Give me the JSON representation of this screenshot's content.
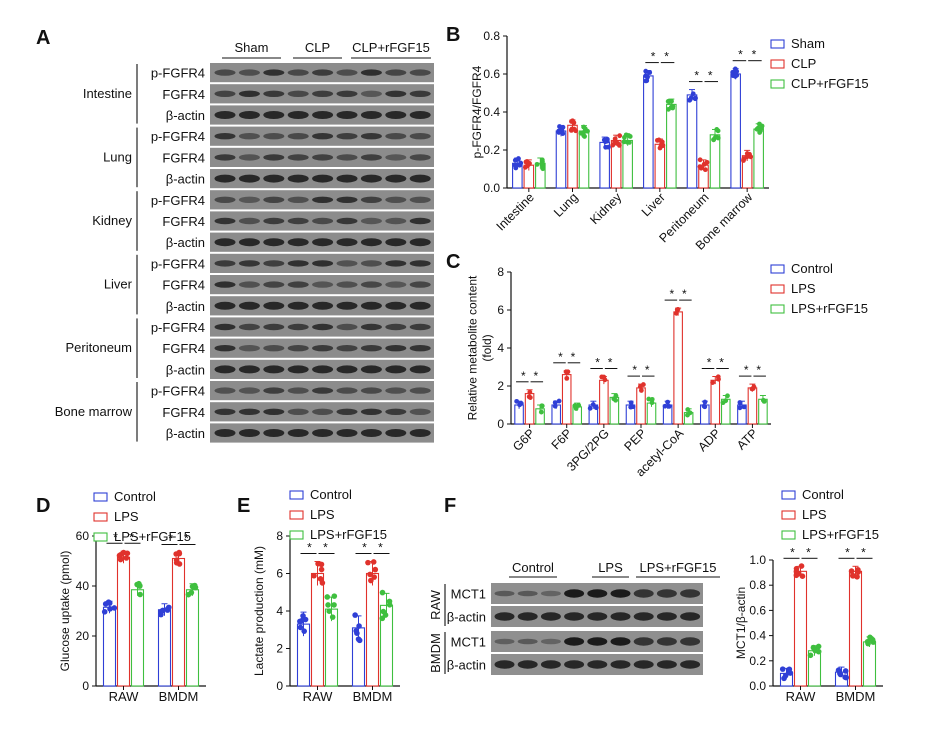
{
  "colors": {
    "sham": "#2f3fd6",
    "clp": "#e0322c",
    "rfgf": "#3fbf3f",
    "axis": "#111111"
  },
  "panel_a": {
    "letter": "A",
    "groups": [
      "Sham",
      "CLP",
      "CLP+rFGF15"
    ],
    "tissues": [
      {
        "name": "Intestine",
        "rows": [
          "p-FGFR4",
          "FGFR4",
          "β-actin"
        ]
      },
      {
        "name": "Lung",
        "rows": [
          "p-FGFR4",
          "FGFR4",
          "β-actin"
        ]
      },
      {
        "name": "Kidney",
        "rows": [
          "p-FGFR4",
          "FGFR4",
          "β-actin"
        ]
      },
      {
        "name": "Liver",
        "rows": [
          "p-FGFR4",
          "FGFR4",
          "β-actin"
        ]
      },
      {
        "name": "Peritoneum",
        "rows": [
          "p-FGFR4",
          "FGFR4",
          "β-actin"
        ]
      },
      {
        "name": "Bone marrow",
        "rows": [
          "p-FGFR4",
          "FGFR4",
          "β-actin"
        ]
      }
    ]
  },
  "panel_f": {
    "letter": "F",
    "groups": [
      "Control",
      "LPS",
      "LPS+rFGF15"
    ],
    "cells": [
      {
        "name": "RAW",
        "rows": [
          "MCT1",
          "β-actin"
        ]
      },
      {
        "name": "BMDM",
        "rows": [
          "MCT1",
          "β-actin"
        ]
      }
    ]
  },
  "chart_data": [
    {
      "panel": "B",
      "type": "bar",
      "ylabel": "p-FGFR4/FGFR4",
      "ylim": [
        0,
        0.8
      ],
      "yticks": [
        "0.0",
        "0.2",
        "0.4",
        "0.6",
        "0.8"
      ],
      "categories": [
        "Intestine",
        "Lung",
        "Kidney",
        "Liver",
        "Peritoneum",
        "Bone marrow"
      ],
      "series": [
        {
          "name": "Sham",
          "values": [
            0.13,
            0.3,
            0.24,
            0.59,
            0.49,
            0.6
          ]
        },
        {
          "name": "CLP",
          "values": [
            0.12,
            0.33,
            0.25,
            0.23,
            0.12,
            0.17
          ]
        },
        {
          "name": "CLP+rFGF15",
          "values": [
            0.13,
            0.3,
            0.25,
            0.44,
            0.28,
            0.31
          ]
        }
      ],
      "sig_cats": [
        3,
        4,
        5
      ],
      "sig_label": "*",
      "legend": "top-right"
    },
    {
      "panel": "C",
      "type": "bar",
      "ylabel": "Relative metabolite content (fold)",
      "ylim": [
        0,
        8
      ],
      "yticks": [
        "0",
        "2",
        "4",
        "6",
        "8"
      ],
      "categories": [
        "G6P",
        "F6P",
        "3PG/2PG",
        "PEP",
        "acetyl-CoA",
        "ADP",
        "ATP"
      ],
      "series": [
        {
          "name": "Control",
          "values": [
            1.0,
            1.0,
            1.0,
            1.0,
            1.0,
            1.0,
            1.0
          ]
        },
        {
          "name": "LPS",
          "values": [
            1.6,
            2.6,
            2.3,
            1.9,
            5.9,
            2.3,
            1.9
          ]
        },
        {
          "name": "LPS+rFGF15",
          "values": [
            0.8,
            0.9,
            1.4,
            1.1,
            0.6,
            1.3,
            1.3
          ]
        }
      ],
      "sig_cats": [
        0,
        1,
        2,
        3,
        4,
        5,
        6
      ],
      "sig_label": "*",
      "legend": "top-right"
    },
    {
      "panel": "D",
      "type": "bar",
      "ylabel": "Glucose uptake (pmol)",
      "ylim": [
        0,
        60
      ],
      "yticks": [
        "0",
        "20",
        "40",
        "60"
      ],
      "categories": [
        "RAW",
        "BMDM"
      ],
      "series": [
        {
          "name": "Control",
          "values": [
            31.5,
            30.5
          ]
        },
        {
          "name": "LPS",
          "values": [
            51.5,
            51.0
          ]
        },
        {
          "name": "LPS+rFGF15",
          "values": [
            38.5,
            38.5
          ]
        }
      ],
      "sig_cats": [
        0,
        1
      ],
      "sig_label": "*",
      "legend": "top-left"
    },
    {
      "panel": "E",
      "type": "bar",
      "ylabel": "Lactate production (mM)",
      "ylim": [
        0,
        8
      ],
      "yticks": [
        "0",
        "2",
        "4",
        "6",
        "8"
      ],
      "categories": [
        "RAW",
        "BMDM"
      ],
      "series": [
        {
          "name": "Control",
          "values": [
            3.3,
            3.1
          ]
        },
        {
          "name": "LPS",
          "values": [
            6.0,
            6.0
          ]
        },
        {
          "name": "LPS+rFGF15",
          "values": [
            4.1,
            4.3
          ]
        }
      ],
      "sig_cats": [
        0,
        1
      ],
      "sig_label": "*",
      "legend": "top-left"
    },
    {
      "panel": "F",
      "type": "bar",
      "ylabel": "MCT1/β-actin",
      "ylim": [
        0,
        1.0
      ],
      "yticks": [
        "0.0",
        "0.2",
        "0.4",
        "0.6",
        "0.8",
        "1.0"
      ],
      "categories": [
        "RAW",
        "BMDM"
      ],
      "series": [
        {
          "name": "Control",
          "values": [
            0.1,
            0.11
          ]
        },
        {
          "name": "LPS",
          "values": [
            0.91,
            0.91
          ]
        },
        {
          "name": "LPS+rFGF15",
          "values": [
            0.28,
            0.35
          ]
        }
      ],
      "sig_cats": [
        0,
        1
      ],
      "sig_label": "*",
      "legend": "top-right"
    }
  ]
}
